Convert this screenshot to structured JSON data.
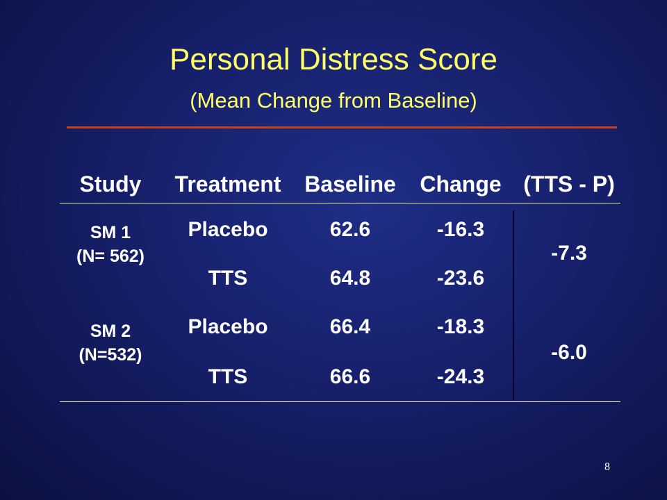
{
  "slide": {
    "title": "Personal Distress Score",
    "subtitle": "(Mean Change from Baseline)",
    "page_number": "8"
  },
  "chart_data": {
    "type": "table",
    "title": "Personal Distress Score",
    "subtitle": "(Mean Change from Baseline)",
    "columns": [
      "Study",
      "Treatment",
      "Baseline",
      "Change",
      "(TTS - P)"
    ],
    "groups": [
      {
        "study": "SM 1",
        "n_label": "(N= 562)",
        "diff": "-7.3",
        "rows": [
          {
            "treatment": "Placebo",
            "baseline": "62.6",
            "change": "-16.3"
          },
          {
            "treatment": "TTS",
            "baseline": "64.8",
            "change": "-23.6"
          }
        ]
      },
      {
        "study": "SM 2",
        "n_label": "(N=532)",
        "diff": "-6.0",
        "rows": [
          {
            "treatment": "Placebo",
            "baseline": "66.4",
            "change": "-18.3"
          },
          {
            "treatment": "TTS",
            "baseline": "66.6",
            "change": "-24.3"
          }
        ]
      }
    ]
  },
  "colors": {
    "background": "#161f6a",
    "title_text": "#ffff66",
    "title_rule": "#c8401a",
    "table_text": "#ffffff"
  }
}
